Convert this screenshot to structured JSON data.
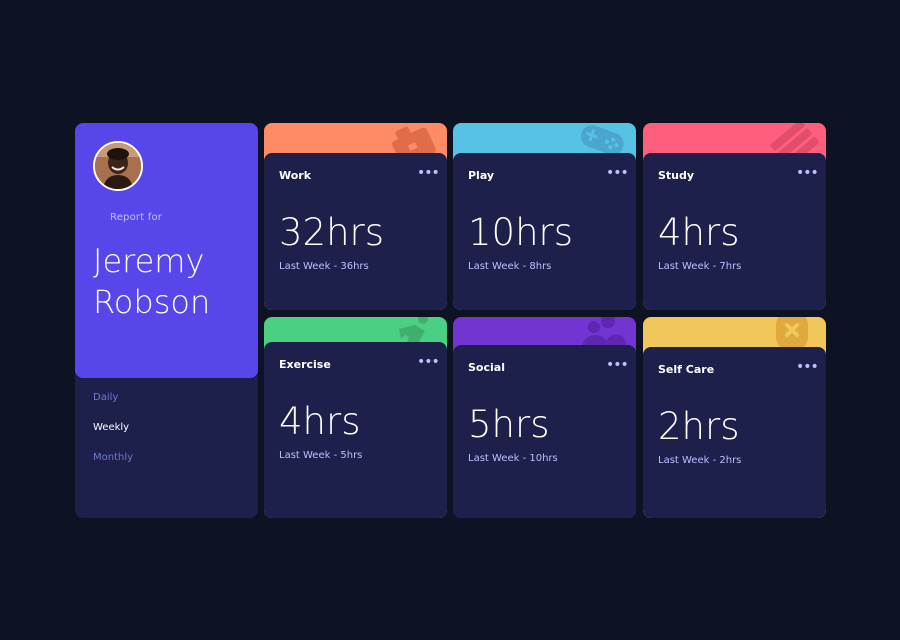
{
  "profile": {
    "report_label": "Report for",
    "name": "Jeremy Robson",
    "avatar_icon": "avatar-photo"
  },
  "timeframes": [
    {
      "label": "Daily",
      "active": false
    },
    {
      "label": "Weekly",
      "active": true
    },
    {
      "label": "Monthly",
      "active": false
    }
  ],
  "menu_glyph": "•••",
  "colors": {
    "background": "#0e1323",
    "card": "#1c204b",
    "profile": "#5747ea",
    "work": "#ff8b64",
    "play": "#55c2e6",
    "study": "#ff5e7d",
    "exercise": "#4bcf82",
    "social": "#7335d2",
    "self_care": "#f1c75b"
  },
  "activities": [
    {
      "title": "Work",
      "current": "32hrs",
      "previous": "Last Week - 36hrs",
      "icon": "briefcase-icon"
    },
    {
      "title": "Play",
      "current": "10hrs",
      "previous": "Last Week - 8hrs",
      "icon": "gamepad-icon"
    },
    {
      "title": "Study",
      "current": "4hrs",
      "previous": "Last Week - 7hrs",
      "icon": "book-icon"
    },
    {
      "title": "Exercise",
      "current": "4hrs",
      "previous": "Last Week - 5hrs",
      "icon": "runner-icon"
    },
    {
      "title": "Social",
      "current": "5hrs",
      "previous": "Last Week - 10hrs",
      "icon": "social-icon"
    },
    {
      "title": "Self Care",
      "current": "2hrs",
      "previous": "Last Week - 2hrs",
      "icon": "self-care-icon"
    }
  ]
}
